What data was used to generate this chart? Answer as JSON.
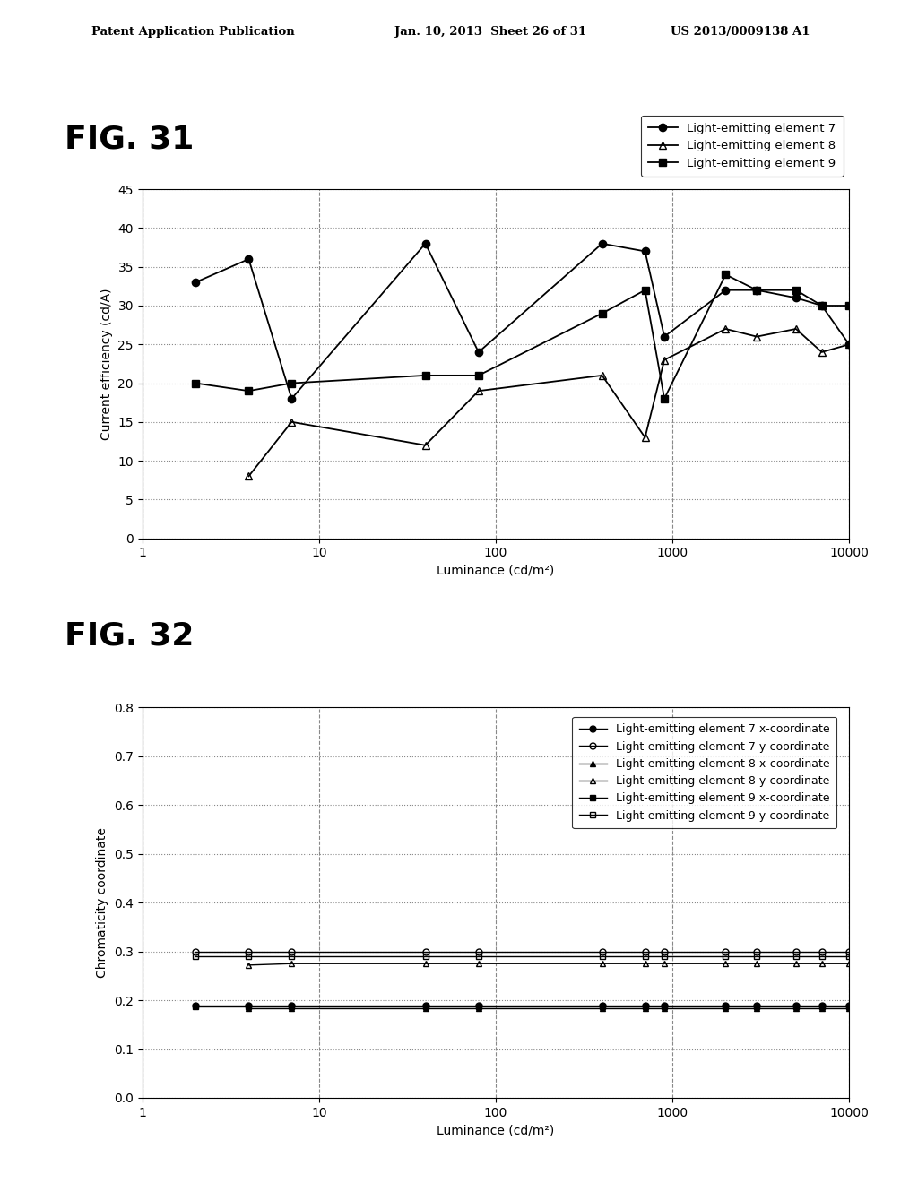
{
  "fig31": {
    "title": "FIG. 31",
    "xlabel": "Luminance (cd/m²)",
    "ylabel": "Current efficiency (cd/A)",
    "ylim": [
      0,
      45
    ],
    "yticks": [
      0,
      5,
      10,
      15,
      20,
      25,
      30,
      35,
      40,
      45
    ],
    "xlim": [
      1,
      10000
    ],
    "series": [
      {
        "label": "Light-emitting element 7",
        "marker": "o",
        "fillstyle": "full",
        "x": [
          2,
          4,
          7,
          40,
          80,
          400,
          700,
          900,
          2000,
          3000,
          5000,
          7000,
          10000
        ],
        "y": [
          33,
          36,
          18,
          38,
          24,
          38,
          37,
          26,
          32,
          32,
          31,
          30,
          25
        ]
      },
      {
        "label": "Light-emitting element 8",
        "marker": "^",
        "fillstyle": "none",
        "x": [
          4,
          7,
          40,
          80,
          400,
          700,
          900,
          2000,
          3000,
          5000,
          7000,
          10000
        ],
        "y": [
          8,
          15,
          12,
          19,
          21,
          13,
          23,
          27,
          26,
          27,
          24,
          25
        ]
      },
      {
        "label": "Light-emitting element 9",
        "marker": "s",
        "fillstyle": "full",
        "x": [
          2,
          4,
          7,
          40,
          80,
          400,
          700,
          900,
          2000,
          3000,
          5000,
          7000,
          10000
        ],
        "y": [
          20,
          19,
          20,
          21,
          21,
          29,
          32,
          18,
          34,
          32,
          32,
          30,
          30
        ]
      }
    ]
  },
  "fig32": {
    "title": "FIG. 32",
    "xlabel": "Luminance (cd/m²)",
    "ylabel": "Chromaticity coordinate",
    "ylim": [
      0,
      0.8
    ],
    "yticks": [
      0,
      0.1,
      0.2,
      0.3,
      0.4,
      0.5,
      0.6,
      0.7,
      0.8
    ],
    "xlim": [
      1,
      10000
    ],
    "series": [
      {
        "label": "Light-emitting element 7 x-coordinate",
        "marker": "o",
        "fillstyle": "full",
        "x": [
          2,
          4,
          7,
          40,
          80,
          400,
          700,
          900,
          2000,
          3000,
          5000,
          7000,
          10000
        ],
        "y": [
          0.19,
          0.19,
          0.19,
          0.19,
          0.19,
          0.19,
          0.19,
          0.19,
          0.19,
          0.19,
          0.19,
          0.19,
          0.19
        ]
      },
      {
        "label": "Light-emitting element 7 y-coordinate",
        "marker": "o",
        "fillstyle": "none",
        "x": [
          2,
          4,
          7,
          40,
          80,
          400,
          700,
          900,
          2000,
          3000,
          5000,
          7000,
          10000
        ],
        "y": [
          0.3,
          0.3,
          0.3,
          0.3,
          0.3,
          0.3,
          0.3,
          0.3,
          0.3,
          0.3,
          0.3,
          0.3,
          0.3
        ]
      },
      {
        "label": "Light-emitting element 8 x-coordinate",
        "marker": "^",
        "fillstyle": "full",
        "x": [
          4,
          7,
          40,
          80,
          400,
          700,
          900,
          2000,
          3000,
          5000,
          7000,
          10000
        ],
        "y": [
          0.183,
          0.183,
          0.183,
          0.183,
          0.183,
          0.183,
          0.183,
          0.183,
          0.183,
          0.183,
          0.183,
          0.183
        ]
      },
      {
        "label": "Light-emitting element 8 y-coordinate",
        "marker": "^",
        "fillstyle": "none",
        "x": [
          4,
          7,
          40,
          80,
          400,
          700,
          900,
          2000,
          3000,
          5000,
          7000,
          10000
        ],
        "y": [
          0.272,
          0.275,
          0.275,
          0.275,
          0.275,
          0.275,
          0.275,
          0.275,
          0.275,
          0.275,
          0.275,
          0.275
        ]
      },
      {
        "label": "Light-emitting element 9 x-coordinate",
        "marker": "s",
        "fillstyle": "full",
        "x": [
          2,
          4,
          7,
          40,
          80,
          400,
          700,
          900,
          2000,
          3000,
          5000,
          7000,
          10000
        ],
        "y": [
          0.188,
          0.188,
          0.188,
          0.188,
          0.188,
          0.188,
          0.188,
          0.188,
          0.188,
          0.188,
          0.188,
          0.188,
          0.188
        ]
      },
      {
        "label": "Light-emitting element 9 y-coordinate",
        "marker": "s",
        "fillstyle": "none",
        "x": [
          2,
          4,
          7,
          40,
          80,
          400,
          700,
          900,
          2000,
          3000,
          5000,
          7000,
          10000
        ],
        "y": [
          0.29,
          0.29,
          0.29,
          0.29,
          0.29,
          0.29,
          0.29,
          0.29,
          0.29,
          0.29,
          0.29,
          0.29,
          0.29
        ]
      }
    ]
  },
  "header_left": "Patent Application Publication",
  "header_mid": "Jan. 10, 2013  Sheet 26 of 31",
  "header_right": "US 2013/0009138 A1",
  "background_color": "#ffffff"
}
